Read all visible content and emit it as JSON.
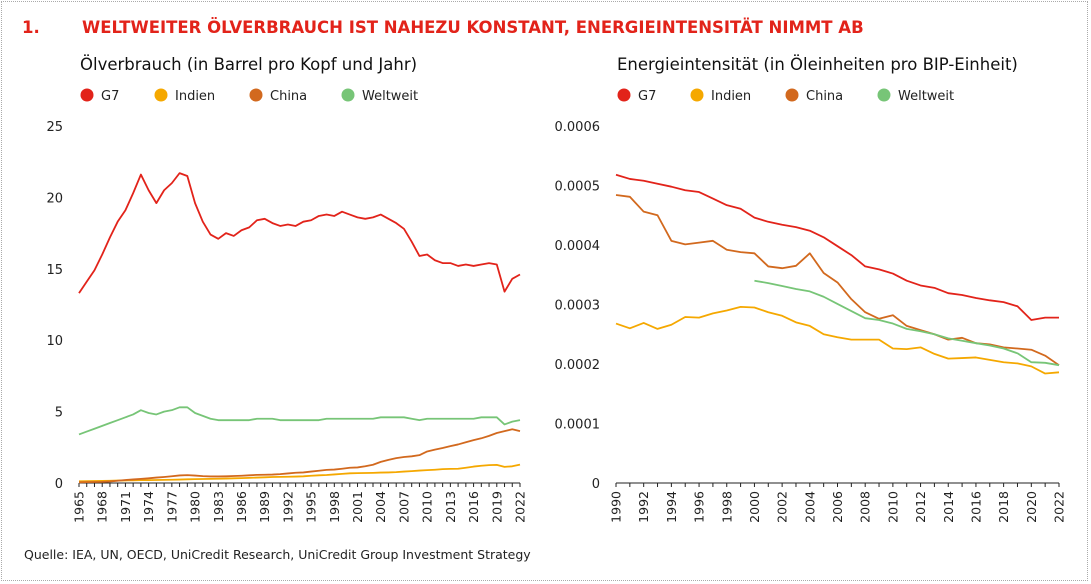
{
  "header": {
    "number": "1.",
    "title": "WELTWEITER ÖLVERBRAUCH IST NAHEZU KONSTANT, ENERGIEINTENSITÄT NIMMT AB"
  },
  "source": "Quelle: IEA, UN, OECD, UniCredit Research, UniCredit Group Investment Strategy",
  "colors": {
    "G7": "#e2231a",
    "Indien": "#f5a800",
    "China": "#d2691e",
    "Weltweit": "#77c577",
    "title": "#e2231a",
    "axis": "#222222"
  },
  "chart_data": [
    {
      "type": "line",
      "title": "Ölverbrauch (in Barrel pro Kopf und Jahr)",
      "legend_position": "top-left",
      "grid": false,
      "x": [
        1965,
        1966,
        1967,
        1968,
        1969,
        1970,
        1971,
        1972,
        1973,
        1974,
        1975,
        1976,
        1977,
        1978,
        1979,
        1980,
        1981,
        1982,
        1983,
        1984,
        1985,
        1986,
        1987,
        1988,
        1989,
        1990,
        1991,
        1992,
        1993,
        1994,
        1995,
        1996,
        1997,
        1998,
        1999,
        2000,
        2001,
        2002,
        2003,
        2004,
        2005,
        2006,
        2007,
        2008,
        2009,
        2010,
        2011,
        2012,
        2013,
        2014,
        2015,
        2016,
        2017,
        2018,
        2019,
        2020,
        2021,
        2022
      ],
      "xticks": [
        "1965",
        "1968",
        "1971",
        "1974",
        "1977",
        "1980",
        "1983",
        "1986",
        "1989",
        "1992",
        "1995",
        "1998",
        "2001",
        "2004",
        "2007",
        "2010",
        "2013",
        "2016",
        "2019",
        "2022"
      ],
      "ylim": [
        0,
        25
      ],
      "yticks": [
        "0",
        "5",
        "10",
        "15",
        "20",
        "25"
      ],
      "series": [
        {
          "name": "G7",
          "values": [
            13.3,
            14.1,
            14.9,
            16.0,
            17.2,
            18.3,
            19.1,
            20.3,
            21.6,
            20.5,
            19.6,
            20.5,
            21.0,
            21.7,
            21.5,
            19.6,
            18.3,
            17.4,
            17.1,
            17.5,
            17.3,
            17.7,
            17.9,
            18.4,
            18.5,
            18.2,
            18.0,
            18.1,
            18.0,
            18.3,
            18.4,
            18.7,
            18.8,
            18.7,
            19.0,
            18.8,
            18.6,
            18.5,
            18.6,
            18.8,
            18.5,
            18.2,
            17.8,
            16.9,
            15.9,
            16.0,
            15.6,
            15.4,
            15.4,
            15.2,
            15.3,
            15.2,
            15.3,
            15.4,
            15.3,
            13.4,
            14.3,
            14.6
          ]
        },
        {
          "name": "Indien",
          "values": [
            0.12,
            0.13,
            0.14,
            0.15,
            0.16,
            0.17,
            0.18,
            0.19,
            0.2,
            0.2,
            0.21,
            0.22,
            0.23,
            0.24,
            0.26,
            0.27,
            0.28,
            0.29,
            0.3,
            0.31,
            0.33,
            0.34,
            0.36,
            0.38,
            0.4,
            0.42,
            0.43,
            0.44,
            0.45,
            0.47,
            0.51,
            0.54,
            0.56,
            0.6,
            0.64,
            0.68,
            0.69,
            0.7,
            0.71,
            0.73,
            0.74,
            0.76,
            0.8,
            0.83,
            0.87,
            0.9,
            0.93,
            0.97,
            0.99,
            1.0,
            1.07,
            1.15,
            1.21,
            1.25,
            1.27,
            1.13,
            1.17,
            1.29
          ]
        },
        {
          "name": "China",
          "values": [
            0.05,
            0.06,
            0.07,
            0.08,
            0.11,
            0.16,
            0.21,
            0.25,
            0.29,
            0.33,
            0.38,
            0.42,
            0.47,
            0.53,
            0.55,
            0.52,
            0.48,
            0.46,
            0.46,
            0.47,
            0.49,
            0.51,
            0.54,
            0.57,
            0.58,
            0.59,
            0.62,
            0.67,
            0.72,
            0.74,
            0.8,
            0.86,
            0.92,
            0.94,
            1.0,
            1.07,
            1.09,
            1.17,
            1.28,
            1.48,
            1.62,
            1.74,
            1.82,
            1.87,
            1.95,
            2.21,
            2.34,
            2.45,
            2.58,
            2.7,
            2.85,
            3.0,
            3.13,
            3.3,
            3.5,
            3.63,
            3.76,
            3.63
          ]
        },
        {
          "name": "Weltweit",
          "values": [
            3.4,
            3.6,
            3.8,
            4.0,
            4.2,
            4.4,
            4.6,
            4.8,
            5.1,
            4.9,
            4.8,
            5.0,
            5.1,
            5.3,
            5.3,
            4.9,
            4.7,
            4.5,
            4.4,
            4.4,
            4.4,
            4.4,
            4.4,
            4.5,
            4.5,
            4.5,
            4.4,
            4.4,
            4.4,
            4.4,
            4.4,
            4.4,
            4.5,
            4.5,
            4.5,
            4.5,
            4.5,
            4.5,
            4.5,
            4.6,
            4.6,
            4.6,
            4.6,
            4.5,
            4.4,
            4.5,
            4.5,
            4.5,
            4.5,
            4.5,
            4.5,
            4.5,
            4.6,
            4.6,
            4.6,
            4.1,
            4.3,
            4.4
          ]
        }
      ]
    },
    {
      "type": "line",
      "title": "Energieintensität (in Öleinheiten pro BIP-Einheit)",
      "legend_position": "top-left",
      "grid": false,
      "x": [
        1990,
        1991,
        1992,
        1993,
        1994,
        1995,
        1996,
        1997,
        1998,
        1999,
        2000,
        2001,
        2002,
        2003,
        2004,
        2005,
        2006,
        2007,
        2008,
        2009,
        2010,
        2011,
        2012,
        2013,
        2014,
        2015,
        2016,
        2017,
        2018,
        2019,
        2020,
        2021,
        2022
      ],
      "xticks": [
        "1990",
        "1992",
        "1994",
        "1996",
        "1998",
        "2000",
        "2002",
        "2004",
        "2006",
        "2008",
        "2010",
        "2012",
        "2014",
        "2016",
        "2018",
        "2020",
        "2022"
      ],
      "ylim": [
        0,
        0.0006
      ],
      "yticks": [
        "0",
        "0.0001",
        "0.0002",
        "0.0003",
        "0.0004",
        "0.0005",
        "0.0006"
      ],
      "series": [
        {
          "name": "G7",
          "values": [
            0.000518,
            0.000511,
            0.000508,
            0.000503,
            0.000498,
            0.000492,
            0.000489,
            0.000478,
            0.000467,
            0.000461,
            0.000446,
            0.000439,
            0.000434,
            0.00043,
            0.000424,
            0.000413,
            0.000398,
            0.000383,
            0.000364,
            0.000359,
            0.000352,
            0.00034,
            0.000332,
            0.000328,
            0.000319,
            0.000316,
            0.000311,
            0.000307,
            0.000304,
            0.000297,
            0.000274,
            0.000278,
            0.000278
          ]
        },
        {
          "name": "Indien",
          "values": [
            0.000268,
            0.00026,
            0.000269,
            0.000259,
            0.000266,
            0.000279,
            0.000278,
            0.000285,
            0.00029,
            0.000296,
            0.000295,
            0.000287,
            0.000281,
            0.00027,
            0.000264,
            0.00025,
            0.000245,
            0.000241,
            0.000241,
            0.000241,
            0.000226,
            0.000225,
            0.000228,
            0.000217,
            0.000209,
            0.00021,
            0.000211,
            0.000207,
            0.000203,
            0.000201,
            0.000196,
            0.000184,
            0.000186
          ]
        },
        {
          "name": "China",
          "values": [
            0.000484,
            0.000481,
            0.000456,
            0.00045,
            0.000407,
            0.000401,
            0.000404,
            0.000407,
            0.000392,
            0.000388,
            0.000386,
            0.000364,
            0.000361,
            0.000365,
            0.000386,
            0.000353,
            0.000337,
            0.000309,
            0.000287,
            0.000276,
            0.000282,
            0.000264,
            0.000257,
            0.00025,
            0.000241,
            0.000244,
            0.000235,
            0.000233,
            0.000228,
            0.000226,
            0.000224,
            0.000214,
            0.000198
          ]
        },
        {
          "name": "Weltweit",
          "values": [
            null,
            null,
            null,
            null,
            null,
            null,
            null,
            null,
            null,
            null,
            0.00034,
            0.000336,
            0.000331,
            0.000326,
            0.000322,
            0.000313,
            0.000301,
            0.000289,
            0.000277,
            0.000274,
            0.000268,
            0.000259,
            0.000255,
            0.00025,
            0.000243,
            0.000239,
            0.000235,
            0.000231,
            0.000226,
            0.000218,
            0.000203,
            0.000202,
            0.000198
          ]
        }
      ]
    }
  ]
}
